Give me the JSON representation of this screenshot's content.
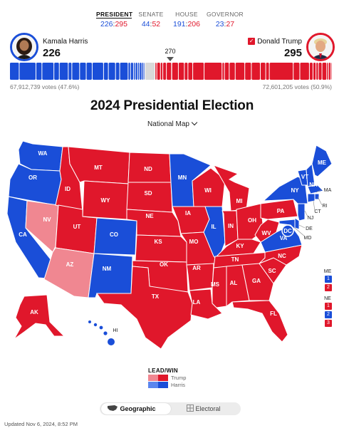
{
  "tabs": [
    {
      "label": "PRESIDENT",
      "dem": "226",
      "rep": "295",
      "active": true
    },
    {
      "label": "SENATE",
      "dem": "44",
      "rep": "52",
      "active": false
    },
    {
      "label": "HOUSE",
      "dem": "191",
      "rep": "206",
      "active": false
    },
    {
      "label": "GOVERNOR",
      "dem": "23",
      "rep": "27",
      "active": false
    }
  ],
  "candidates": {
    "dem": {
      "name": "Kamala Harris",
      "electoral": "226",
      "votes": "67,912,739 votes (47.6%)"
    },
    "rep": {
      "name": "Donald Trump",
      "electoral": "295",
      "votes": "72,601,205 votes (50.9%)",
      "winner_check": "✓"
    }
  },
  "target_votes": "270",
  "title": "2024 Presidential Election",
  "map_selector": "National Map",
  "colors": {
    "dem_win": "#1a4ed8",
    "dem_lead": "#5b86ee",
    "rep_win": "#e0172b",
    "rep_lead": "#f08791",
    "uncalled": "#d9d9d9"
  },
  "states": {
    "WA": "WA",
    "OR": "OR",
    "CA": "CA",
    "NV": "NV",
    "ID": "ID",
    "MT": "MT",
    "WY": "WY",
    "UT": "UT",
    "AZ": "AZ",
    "CO": "CO",
    "NM": "NM",
    "ND": "ND",
    "SD": "SD",
    "NE": "NE",
    "KS": "KS",
    "OK": "OK",
    "TX": "TX",
    "MN": "MN",
    "IA": "IA",
    "MO": "MO",
    "AR": "AR",
    "LA": "LA",
    "WI": "WI",
    "IL": "IL",
    "MI": "MI",
    "IN": "IN",
    "OH": "OH",
    "KY": "KY",
    "TN": "TN",
    "MS": "MS",
    "AL": "AL",
    "GA": "GA",
    "FL": "FL",
    "SC": "SC",
    "NC": "NC",
    "VA": "VA",
    "WV": "WV",
    "PA": "PA",
    "NY": "NY",
    "ME": "ME",
    "VT": "VT",
    "NH": "NH",
    "MA": "MA",
    "RI": "RI",
    "CT": "CT",
    "NJ": "NJ",
    "DE": "DE",
    "MD": "MD",
    "DC": "DC",
    "AK": "AK",
    "HI": "HI"
  },
  "splits": {
    "me": {
      "label": "ME",
      "d1": "1",
      "d2": "2"
    },
    "ne": {
      "label": "NE",
      "d1": "1",
      "d2": "2",
      "d3": "3"
    }
  },
  "legend": {
    "title": "LEAD/WIN",
    "trump": "Trump",
    "harris": "Harris"
  },
  "view_toggle": {
    "geographic": "Geographic",
    "electoral": "Electoral"
  },
  "updated": "Updated Nov 6, 2024, 8:52 PM"
}
